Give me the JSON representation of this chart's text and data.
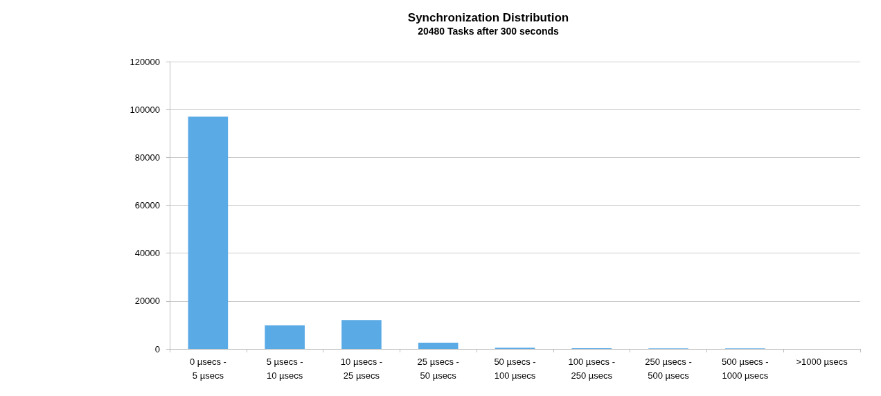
{
  "chart_data": {
    "type": "bar",
    "title": "Synchronization Distribution",
    "subtitle": "20480 Tasks after 300 seconds",
    "categories": [
      "0 µsecs -\n5 µsecs",
      "5 µsecs -\n10 µsecs",
      "10 µsecs -\n25 µsecs",
      "25 µsecs -\n50 µsecs",
      "50 µsecs -\n100 µsecs",
      "100 µsecs -\n250 µsecs",
      "250 µsecs -\n500 µsecs",
      "500 µsecs -\n1000 µsecs",
      ">1000 µsecs"
    ],
    "values": [
      97000,
      9800,
      12100,
      2600,
      500,
      300,
      200,
      200,
      0
    ],
    "color": "#5aaae6",
    "ylim": [
      0,
      120000
    ],
    "yticks": [
      0,
      20000,
      40000,
      60000,
      80000,
      100000,
      120000
    ],
    "grid": "y"
  }
}
